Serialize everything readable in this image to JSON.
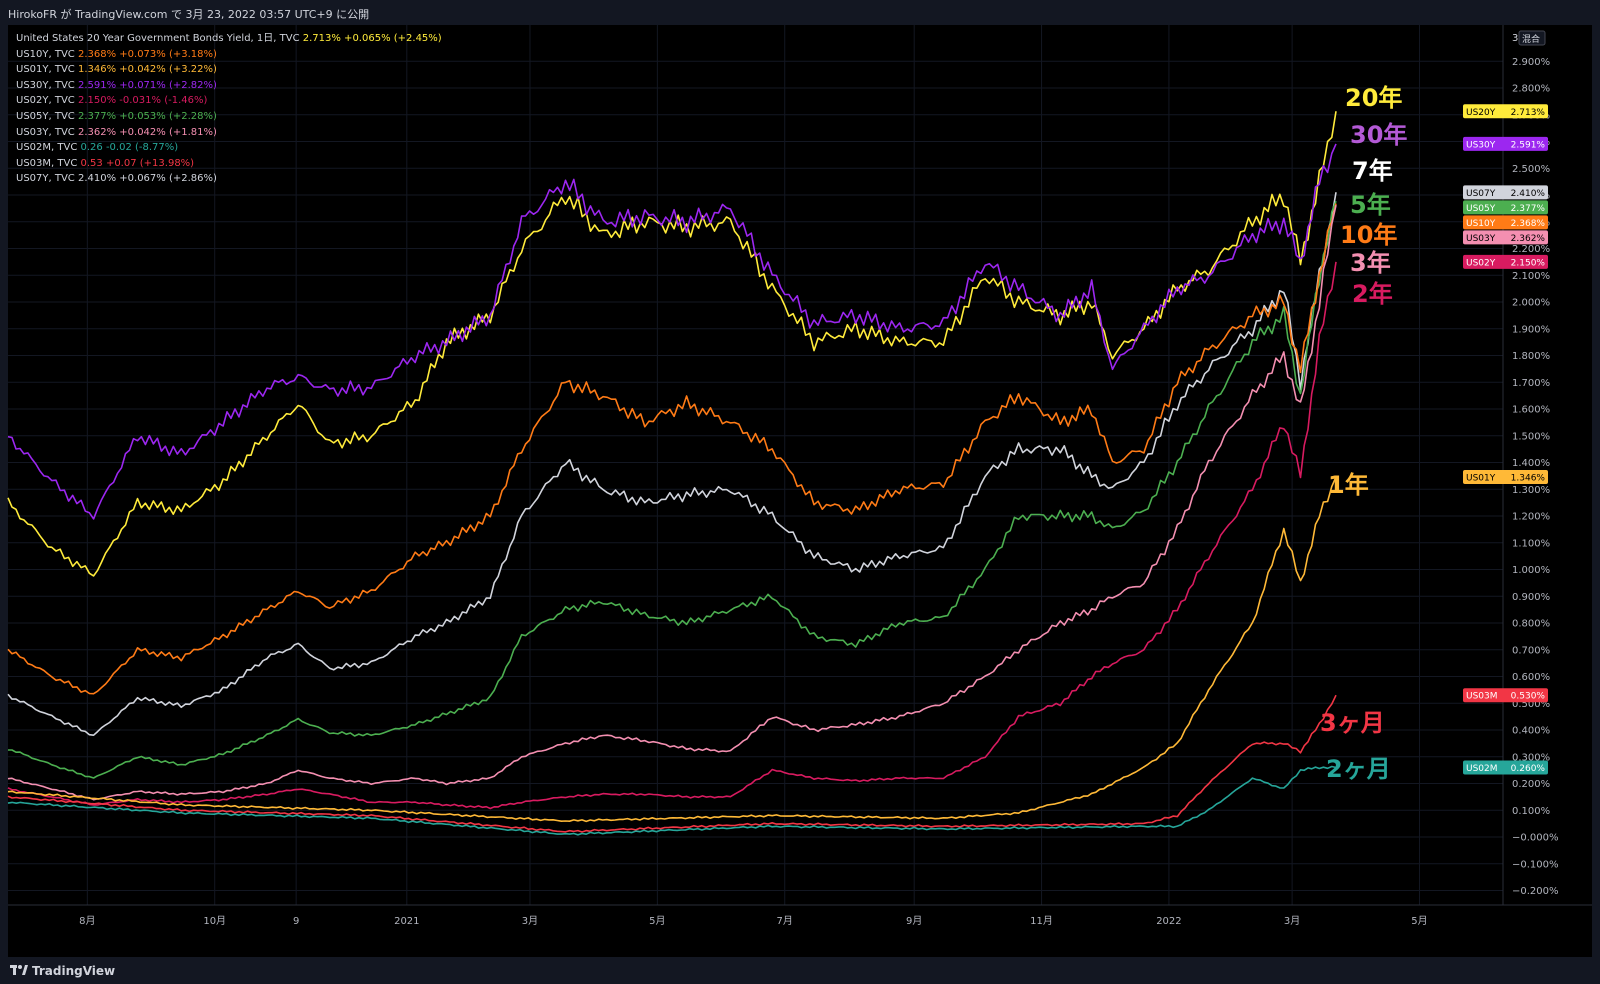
{
  "header": {
    "title": "HirokoFR が TradingView.com で 3月 23, 2022 03:57 UTC+9 に公開"
  },
  "legend": [
    {
      "name": "United States 20 Year Government Bonds Yield, 1日, TVC",
      "value": "2.713%",
      "change": "+0.065% (+2.45%)",
      "color": "#ffeb3b"
    },
    {
      "name": "US10Y, TVC",
      "value": "2.368%",
      "change": "+0.073% (+3.18%)",
      "color": "#ff7b16"
    },
    {
      "name": "US01Y, TVC",
      "value": "1.346%",
      "change": "+0.042% (+3.22%)",
      "color": "#ffb937"
    },
    {
      "name": "US30Y, TVC",
      "value": "2.591%",
      "change": "+0.071% (+2.82%)",
      "color": "#9c27f0"
    },
    {
      "name": "US02Y, TVC",
      "value": "2.150%",
      "change": "-0.031% (-1.46%)",
      "color": "#d81b60"
    },
    {
      "name": "US05Y, TVC",
      "value": "2.377%",
      "change": "+0.053% (+2.28%)",
      "color": "#4caf50"
    },
    {
      "name": "US03Y, TVC",
      "value": "2.362%",
      "change": "+0.042% (+1.81%)",
      "color": "#f48fb1"
    },
    {
      "name": "US02M, TVC",
      "value": "0.26",
      "change": "-0.02 (-8.77%)",
      "color": "#26a69a"
    },
    {
      "name": "US03M, TVC",
      "value": "0.53",
      "change": "+0.07 (+13.98%)",
      "color": "#f23645"
    },
    {
      "name": "US07Y, TVC",
      "value": "2.410%",
      "change": "+0.067% (+2.86%)",
      "color": "#d1d4dc"
    }
  ],
  "scale_labels": {
    "top": "3",
    "mode": "混合"
  },
  "annotations": [
    {
      "text": "20年",
      "color": "#ffeb3b",
      "series": "US20Y"
    },
    {
      "text": "30年",
      "color": "#b45ad6",
      "series": "US30Y"
    },
    {
      "text": "7年",
      "color": "#ffffff",
      "series": "US07Y"
    },
    {
      "text": "5年",
      "color": "#4caf50",
      "series": "US05Y"
    },
    {
      "text": "10年",
      "color": "#ff7b16",
      "series": "US10Y"
    },
    {
      "text": "3年",
      "color": "#f48fb1",
      "series": "US03Y"
    },
    {
      "text": "2年",
      "color": "#d81b60",
      "series": "US02Y"
    },
    {
      "text": "1年",
      "color": "#ffb937",
      "series": "US01Y"
    },
    {
      "text": "3ヶ月",
      "color": "#f23645",
      "series": "US03M"
    },
    {
      "text": "2ヶ月",
      "color": "#26a69a",
      "series": "US02M"
    }
  ],
  "price_tags": [
    {
      "label": "US20Y",
      "value": "2.713%",
      "bg": "#ffeb3b",
      "fg": "#000000"
    },
    {
      "label": "US30Y",
      "value": "2.591%",
      "bg": "#9c27f0",
      "fg": "#ffffff"
    },
    {
      "label": "US07Y",
      "value": "2.410%",
      "bg": "#d1d4dc",
      "fg": "#000000"
    },
    {
      "label": "US05Y",
      "value": "2.377%",
      "bg": "#4caf50",
      "fg": "#ffffff"
    },
    {
      "label": "US10Y",
      "value": "2.368%",
      "bg": "#ff7b16",
      "fg": "#ffffff"
    },
    {
      "label": "US03Y",
      "value": "2.362%",
      "bg": "#f48fb1",
      "fg": "#000000"
    },
    {
      "label": "US02Y",
      "value": "2.150%",
      "bg": "#d81b60",
      "fg": "#ffffff"
    },
    {
      "label": "US01Y",
      "value": "1.346%",
      "bg": "#ffb937",
      "fg": "#000000"
    },
    {
      "label": "US03M",
      "value": "0.530%",
      "bg": "#f23645",
      "fg": "#ffffff"
    },
    {
      "label": "US02M",
      "value": "0.260%",
      "bg": "#26a69a",
      "fg": "#ffffff"
    }
  ],
  "chart_data": {
    "type": "line",
    "y_unit": "%",
    "ylim": [
      -0.25,
      3.0
    ],
    "y_ticks": [
      2.9,
      2.8,
      2.7,
      2.6,
      2.5,
      2.4,
      2.3,
      2.2,
      2.1,
      2.0,
      1.9,
      1.8,
      1.7,
      1.6,
      1.5,
      1.4,
      1.3,
      1.2,
      1.1,
      1.0,
      0.9,
      0.8,
      0.7,
      0.6,
      0.5,
      0.4,
      0.3,
      0.2,
      0.1,
      -0.0,
      -0.1,
      -0.2
    ],
    "x_range": [
      "2020-06-24",
      "2022-06-10"
    ],
    "x_ticks": [
      {
        "label": "8月",
        "date": "2020-08-01"
      },
      {
        "label": "10月",
        "date": "2020-10-01"
      },
      {
        "label": "9",
        "date": "2020-11-09"
      },
      {
        "label": "2021",
        "date": "2021-01-01"
      },
      {
        "label": "3月",
        "date": "2021-03-01"
      },
      {
        "label": "5月",
        "date": "2021-05-01"
      },
      {
        "label": "7月",
        "date": "2021-07-01"
      },
      {
        "label": "9月",
        "date": "2021-09-01"
      },
      {
        "label": "11月",
        "date": "2021-11-01"
      },
      {
        "label": "2022",
        "date": "2022-01-01"
      },
      {
        "label": "3月",
        "date": "2022-03-01"
      },
      {
        "label": "5月",
        "date": "2022-05-01"
      }
    ],
    "grid": true,
    "series": [
      {
        "name": "US20Y",
        "color": "#ffeb3b",
        "dates": [
          "2020-06-24",
          "2020-07-15",
          "2020-08-04",
          "2020-08-25",
          "2020-09-15",
          "2020-10-05",
          "2020-10-26",
          "2020-11-10",
          "2020-11-25",
          "2020-12-15",
          "2021-01-05",
          "2021-01-20",
          "2021-02-10",
          "2021-02-25",
          "2021-03-18",
          "2021-04-05",
          "2021-04-25",
          "2021-05-15",
          "2021-06-05",
          "2021-06-25",
          "2021-07-15",
          "2021-08-04",
          "2021-08-25",
          "2021-09-15",
          "2021-10-05",
          "2021-10-21",
          "2021-11-10",
          "2021-11-25",
          "2021-12-05",
          "2021-12-20",
          "2022-01-05",
          "2022-01-20",
          "2022-02-10",
          "2022-02-25",
          "2022-03-05",
          "2022-03-14",
          "2022-03-22"
        ],
        "values": [
          1.25,
          1.08,
          0.98,
          1.25,
          1.22,
          1.33,
          1.5,
          1.62,
          1.47,
          1.5,
          1.63,
          1.85,
          1.95,
          2.2,
          2.4,
          2.25,
          2.3,
          2.28,
          2.3,
          2.05,
          1.85,
          1.9,
          1.85,
          1.85,
          2.1,
          2.0,
          1.95,
          2.0,
          1.8,
          1.9,
          2.05,
          2.12,
          2.3,
          2.4,
          2.15,
          2.45,
          2.713
        ]
      },
      {
        "name": "US30Y",
        "color": "#9c27f0",
        "dates": [
          "2020-06-24",
          "2020-07-15",
          "2020-08-04",
          "2020-08-25",
          "2020-09-15",
          "2020-10-05",
          "2020-10-26",
          "2020-11-10",
          "2020-11-25",
          "2020-12-15",
          "2021-01-05",
          "2021-01-20",
          "2021-02-10",
          "2021-02-25",
          "2021-03-18",
          "2021-04-05",
          "2021-04-25",
          "2021-05-15",
          "2021-06-05",
          "2021-06-25",
          "2021-07-15",
          "2021-08-04",
          "2021-08-25",
          "2021-09-15",
          "2021-10-05",
          "2021-10-21",
          "2021-11-10",
          "2021-11-25",
          "2021-12-05",
          "2021-12-20",
          "2022-01-05",
          "2022-01-20",
          "2022-02-10",
          "2022-02-25",
          "2022-03-05",
          "2022-03-14",
          "2022-03-22"
        ],
        "values": [
          1.5,
          1.33,
          1.2,
          1.5,
          1.43,
          1.55,
          1.68,
          1.72,
          1.67,
          1.68,
          1.8,
          1.85,
          1.95,
          2.3,
          2.45,
          2.3,
          2.32,
          2.3,
          2.35,
          2.1,
          1.92,
          1.95,
          1.9,
          1.92,
          2.15,
          2.05,
          1.95,
          2.05,
          1.75,
          1.9,
          2.05,
          2.1,
          2.25,
          2.3,
          2.15,
          2.45,
          2.591
        ]
      },
      {
        "name": "US07Y",
        "color": "#d1d4dc",
        "dates": [
          "2020-06-24",
          "2020-07-15",
          "2020-08-04",
          "2020-08-25",
          "2020-09-15",
          "2020-10-05",
          "2020-10-26",
          "2020-11-10",
          "2020-11-25",
          "2020-12-15",
          "2021-01-05",
          "2021-01-20",
          "2021-02-10",
          "2021-02-25",
          "2021-03-18",
          "2021-04-05",
          "2021-04-25",
          "2021-05-15",
          "2021-06-05",
          "2021-06-25",
          "2021-07-15",
          "2021-08-04",
          "2021-08-25",
          "2021-09-15",
          "2021-10-05",
          "2021-10-21",
          "2021-11-10",
          "2021-11-25",
          "2021-12-05",
          "2021-12-20",
          "2022-01-05",
          "2022-01-20",
          "2022-02-10",
          "2022-02-25",
          "2022-03-05",
          "2022-03-14",
          "2022-03-22"
        ],
        "values": [
          0.53,
          0.45,
          0.38,
          0.52,
          0.49,
          0.55,
          0.67,
          0.72,
          0.63,
          0.65,
          0.75,
          0.8,
          0.9,
          1.2,
          1.4,
          1.3,
          1.25,
          1.28,
          1.3,
          1.2,
          1.05,
          1.0,
          1.05,
          1.08,
          1.35,
          1.45,
          1.45,
          1.35,
          1.3,
          1.4,
          1.62,
          1.75,
          1.9,
          2.05,
          1.7,
          2.1,
          2.41
        ]
      },
      {
        "name": "US05Y",
        "color": "#4caf50",
        "dates": [
          "2020-06-24",
          "2020-07-15",
          "2020-08-04",
          "2020-08-25",
          "2020-09-15",
          "2020-10-05",
          "2020-10-26",
          "2020-11-10",
          "2020-11-25",
          "2020-12-15",
          "2021-01-05",
          "2021-01-20",
          "2021-02-10",
          "2021-02-25",
          "2021-03-18",
          "2021-04-05",
          "2021-04-25",
          "2021-05-15",
          "2021-06-05",
          "2021-06-25",
          "2021-07-15",
          "2021-08-04",
          "2021-08-25",
          "2021-09-15",
          "2021-10-05",
          "2021-10-21",
          "2021-11-10",
          "2021-11-25",
          "2021-12-05",
          "2021-12-20",
          "2022-01-05",
          "2022-01-20",
          "2022-02-10",
          "2022-02-25",
          "2022-03-05",
          "2022-03-14",
          "2022-03-22"
        ],
        "values": [
          0.33,
          0.27,
          0.22,
          0.3,
          0.27,
          0.31,
          0.38,
          0.44,
          0.39,
          0.38,
          0.42,
          0.46,
          0.52,
          0.75,
          0.85,
          0.88,
          0.83,
          0.8,
          0.85,
          0.9,
          0.75,
          0.72,
          0.8,
          0.82,
          1.0,
          1.2,
          1.2,
          1.2,
          1.15,
          1.22,
          1.4,
          1.6,
          1.85,
          1.95,
          1.65,
          2.1,
          2.377
        ]
      },
      {
        "name": "US10Y",
        "color": "#ff7b16",
        "dates": [
          "2020-06-24",
          "2020-07-15",
          "2020-08-04",
          "2020-08-25",
          "2020-09-15",
          "2020-10-05",
          "2020-10-26",
          "2020-11-10",
          "2020-11-25",
          "2020-12-15",
          "2021-01-05",
          "2021-01-20",
          "2021-02-10",
          "2021-02-25",
          "2021-03-18",
          "2021-04-05",
          "2021-04-25",
          "2021-05-15",
          "2021-06-05",
          "2021-06-25",
          "2021-07-15",
          "2021-08-04",
          "2021-08-25",
          "2021-09-15",
          "2021-10-05",
          "2021-10-21",
          "2021-11-10",
          "2021-11-25",
          "2021-12-05",
          "2021-12-20",
          "2022-01-05",
          "2022-01-20",
          "2022-02-10",
          "2022-02-25",
          "2022-03-05",
          "2022-03-14",
          "2022-03-22"
        ],
        "values": [
          0.7,
          0.6,
          0.53,
          0.7,
          0.67,
          0.75,
          0.85,
          0.92,
          0.86,
          0.92,
          1.05,
          1.1,
          1.2,
          1.45,
          1.7,
          1.65,
          1.55,
          1.62,
          1.55,
          1.45,
          1.25,
          1.22,
          1.3,
          1.32,
          1.55,
          1.65,
          1.55,
          1.6,
          1.4,
          1.45,
          1.7,
          1.82,
          1.95,
          2.0,
          1.75,
          2.1,
          2.368
        ]
      },
      {
        "name": "US03Y",
        "color": "#f48fb1",
        "dates": [
          "2020-06-24",
          "2020-07-15",
          "2020-08-04",
          "2020-08-25",
          "2020-09-15",
          "2020-10-05",
          "2020-10-26",
          "2020-11-10",
          "2020-11-25",
          "2020-12-15",
          "2021-01-05",
          "2021-01-20",
          "2021-02-10",
          "2021-02-25",
          "2021-03-18",
          "2021-04-05",
          "2021-04-25",
          "2021-05-15",
          "2021-06-05",
          "2021-06-25",
          "2021-07-15",
          "2021-08-04",
          "2021-08-25",
          "2021-09-15",
          "2021-10-05",
          "2021-10-21",
          "2021-11-10",
          "2021-11-25",
          "2021-12-05",
          "2021-12-20",
          "2022-01-05",
          "2022-01-20",
          "2022-02-10",
          "2022-02-25",
          "2022-03-05",
          "2022-03-14",
          "2022-03-22"
        ],
        "values": [
          0.22,
          0.18,
          0.14,
          0.17,
          0.16,
          0.17,
          0.2,
          0.25,
          0.22,
          0.2,
          0.22,
          0.2,
          0.22,
          0.3,
          0.35,
          0.38,
          0.36,
          0.33,
          0.32,
          0.45,
          0.4,
          0.42,
          0.45,
          0.5,
          0.6,
          0.7,
          0.8,
          0.85,
          0.9,
          0.95,
          1.15,
          1.4,
          1.65,
          1.8,
          1.6,
          2.0,
          2.362
        ]
      },
      {
        "name": "US02Y",
        "color": "#d81b60",
        "dates": [
          "2020-06-24",
          "2020-07-15",
          "2020-08-04",
          "2020-08-25",
          "2020-09-15",
          "2020-10-05",
          "2020-10-26",
          "2020-11-10",
          "2020-11-25",
          "2020-12-15",
          "2021-01-05",
          "2021-01-20",
          "2021-02-10",
          "2021-02-25",
          "2021-03-18",
          "2021-04-05",
          "2021-04-25",
          "2021-05-15",
          "2021-06-05",
          "2021-06-25",
          "2021-07-15",
          "2021-08-04",
          "2021-08-25",
          "2021-09-15",
          "2021-10-05",
          "2021-10-21",
          "2021-11-10",
          "2021-11-25",
          "2021-12-05",
          "2021-12-20",
          "2022-01-05",
          "2022-01-20",
          "2022-02-10",
          "2022-02-25",
          "2022-03-05",
          "2022-03-14",
          "2022-03-22"
        ],
        "values": [
          0.18,
          0.15,
          0.12,
          0.14,
          0.13,
          0.14,
          0.16,
          0.18,
          0.16,
          0.13,
          0.13,
          0.12,
          0.11,
          0.13,
          0.15,
          0.16,
          0.16,
          0.15,
          0.15,
          0.25,
          0.22,
          0.21,
          0.22,
          0.22,
          0.3,
          0.45,
          0.5,
          0.6,
          0.65,
          0.7,
          0.85,
          1.05,
          1.3,
          1.55,
          1.35,
          1.85,
          2.15
        ]
      },
      {
        "name": "US01Y",
        "color": "#ffb937",
        "dates": [
          "2020-06-24",
          "2020-09-15",
          "2020-12-15",
          "2021-03-18",
          "2021-06-25",
          "2021-09-15",
          "2021-10-21",
          "2021-11-25",
          "2021-12-20",
          "2022-01-05",
          "2022-01-20",
          "2022-02-10",
          "2022-02-25",
          "2022-03-05",
          "2022-03-14",
          "2022-03-22"
        ],
        "values": [
          0.17,
          0.12,
          0.1,
          0.06,
          0.08,
          0.07,
          0.09,
          0.16,
          0.26,
          0.35,
          0.55,
          0.8,
          1.15,
          0.95,
          1.2,
          1.346
        ]
      },
      {
        "name": "US03M",
        "color": "#f23645",
        "dates": [
          "2020-06-24",
          "2020-09-15",
          "2020-12-15",
          "2021-03-18",
          "2021-06-25",
          "2021-09-15",
          "2021-12-20",
          "2022-01-05",
          "2022-01-20",
          "2022-02-10",
          "2022-02-25",
          "2022-03-05",
          "2022-03-14",
          "2022-03-22"
        ],
        "values": [
          0.15,
          0.1,
          0.08,
          0.02,
          0.05,
          0.04,
          0.05,
          0.08,
          0.2,
          0.35,
          0.35,
          0.32,
          0.42,
          0.53
        ]
      },
      {
        "name": "US02M",
        "color": "#26a69a",
        "dates": [
          "2020-06-24",
          "2020-09-15",
          "2020-12-15",
          "2021-03-18",
          "2021-06-25",
          "2021-09-15",
          "2021-12-20",
          "2022-01-05",
          "2022-01-20",
          "2022-02-10",
          "2022-02-25",
          "2022-03-05",
          "2022-03-14",
          "2022-03-22"
        ],
        "values": [
          0.13,
          0.09,
          0.07,
          0.01,
          0.04,
          0.03,
          0.04,
          0.04,
          0.1,
          0.22,
          0.18,
          0.25,
          0.26,
          0.26
        ]
      }
    ]
  },
  "footer": {
    "brand": "TradingView",
    "logo_icon": "tradingview-logo-icon"
  }
}
